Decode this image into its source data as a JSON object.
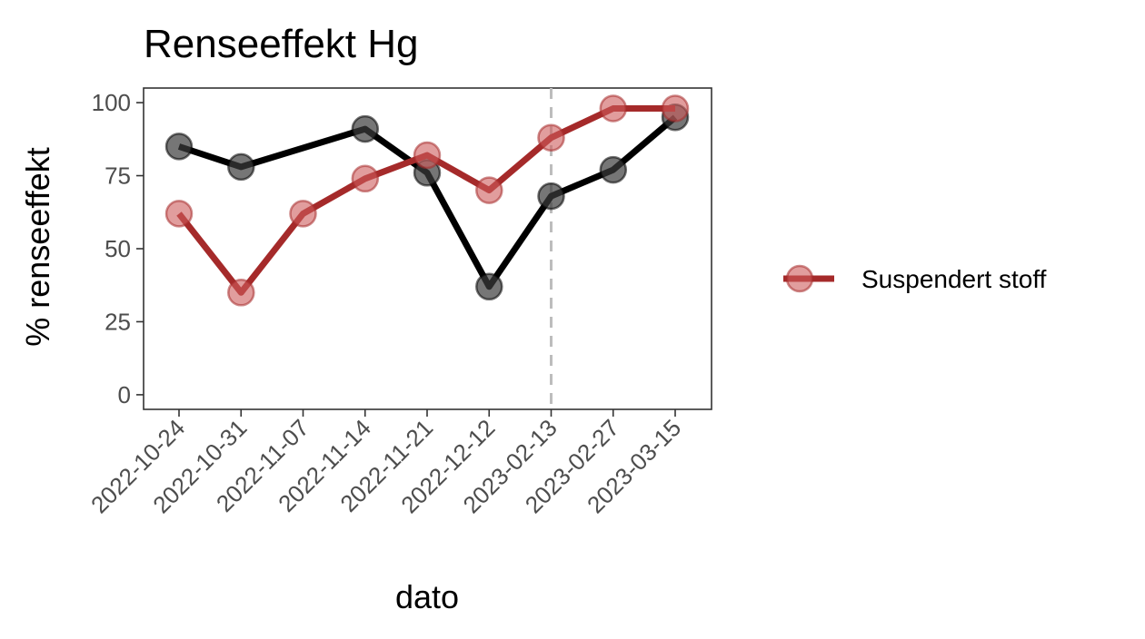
{
  "chart_data": {
    "type": "line",
    "title": "Renseeffekt Hg",
    "xlabel": "dato",
    "ylabel": "% renseeffekt",
    "categories": [
      "2022-10-24",
      "2022-10-31",
      "2022-11-07",
      "2022-11-14",
      "2022-11-21",
      "2022-12-12",
      "2023-02-13",
      "2023-02-27",
      "2023-03-15"
    ],
    "ylim": [
      0,
      100
    ],
    "yticks": [
      0,
      25,
      50,
      75,
      100
    ],
    "vline_at": "2023-02-13",
    "series": [
      {
        "name": "",
        "color": "#000000",
        "values": [
          85,
          78,
          null,
          91,
          76,
          37,
          68,
          77,
          95
        ]
      },
      {
        "name": "Suspendert stoff",
        "color": "#a52a2a",
        "values": [
          62,
          35,
          62,
          74,
          82,
          70,
          88,
          98,
          98
        ]
      }
    ],
    "legend_position": "right",
    "grid": false
  }
}
